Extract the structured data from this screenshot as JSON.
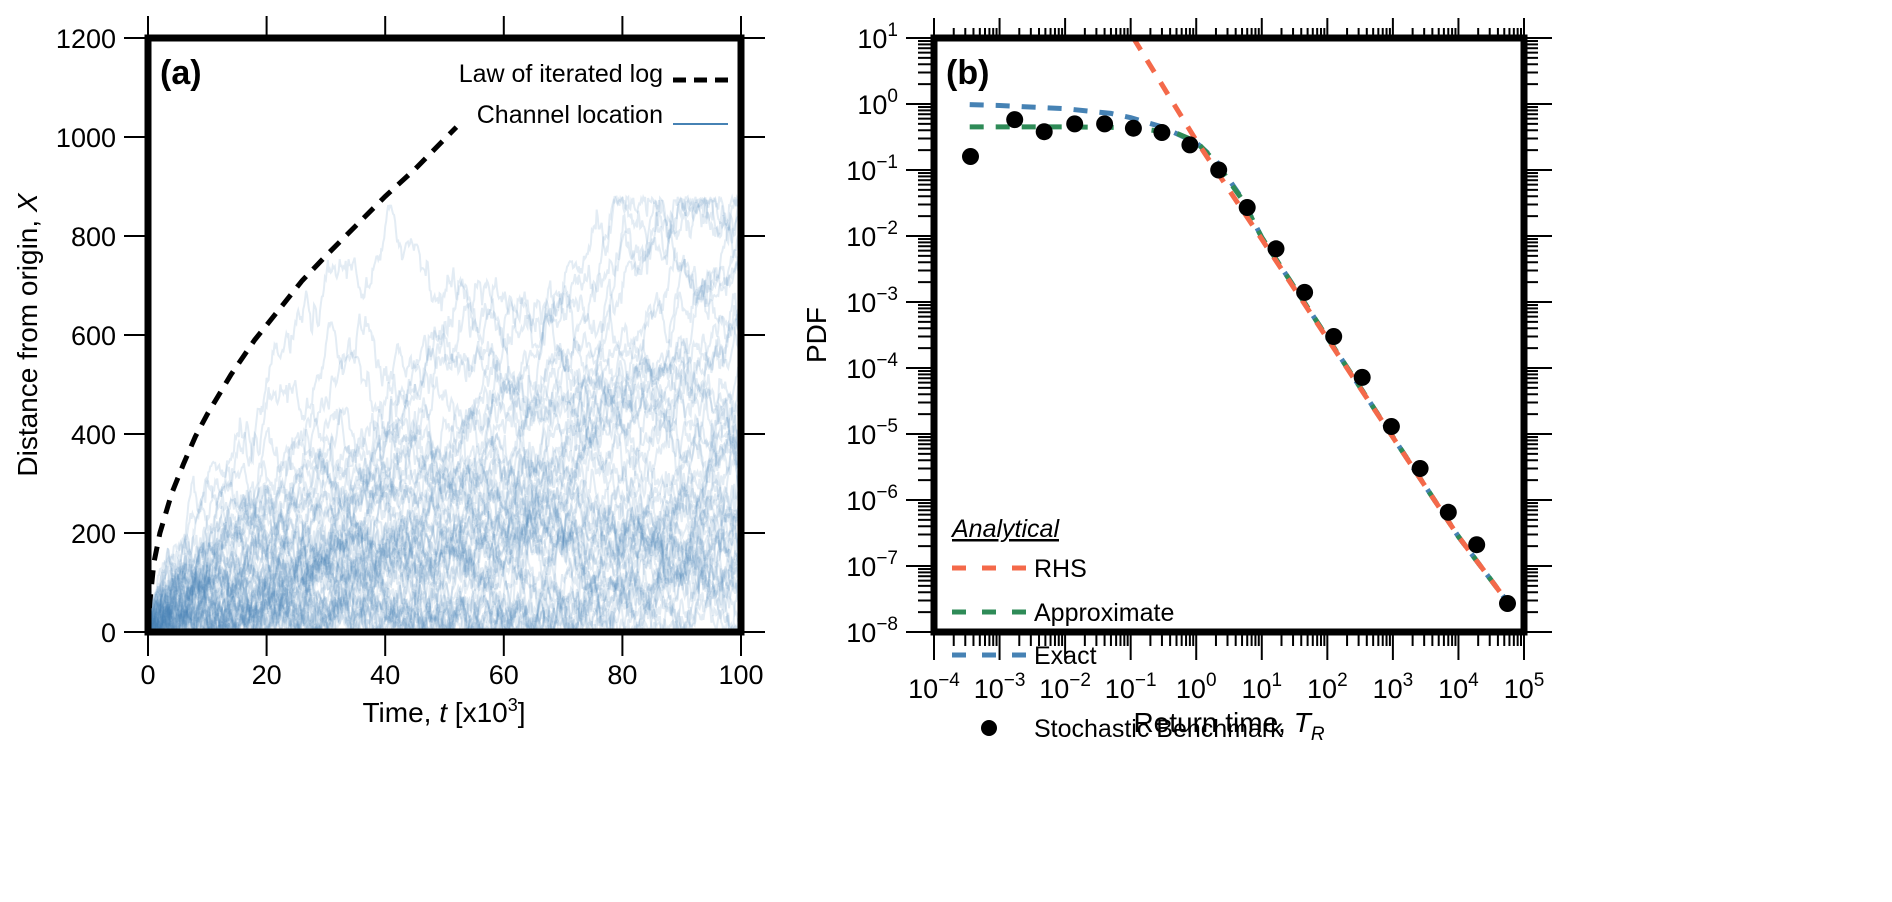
{
  "chart_data": [
    {
      "panel": "a",
      "type": "line",
      "panel_label": "(a)",
      "xlabel": "Time, t [x10^3]",
      "xlabel_parts": {
        "pre": "Time, ",
        "var": "t",
        "post": " [x10",
        "sup": "3",
        "close": "]"
      },
      "ylabel": "Distance from origin, X",
      "ylabel_parts": {
        "pre": "Distance from origin, ",
        "var": "X"
      },
      "xlim": [
        0,
        100
      ],
      "ylim": [
        0,
        1200
      ],
      "xticks": [
        0,
        20,
        40,
        60,
        80,
        100
      ],
      "xtick_labels": [
        "0",
        "20",
        "40",
        "60",
        "80",
        "100"
      ],
      "yticks": [
        0,
        200,
        400,
        600,
        800,
        1000,
        1200
      ],
      "ytick_labels": [
        "0",
        "200",
        "400",
        "600",
        "800",
        "1000",
        "1200"
      ],
      "grid": false,
      "legend_position": "top-right",
      "legend": [
        {
          "label": "Law of iterated log",
          "style": "dashed",
          "color": "#000000"
        },
        {
          "label": "Channel location",
          "style": "solid",
          "color": "#4682b4"
        }
      ],
      "series": [
        {
          "name": "Law of iterated log",
          "style": "dashed",
          "color": "#000000",
          "x": [
            0.3,
            1,
            2,
            4,
            6,
            8,
            10,
            14,
            18,
            22,
            26,
            30,
            35,
            40,
            45,
            52
          ],
          "y": [
            60,
            140,
            200,
            280,
            340,
            395,
            440,
            520,
            590,
            650,
            710,
            760,
            820,
            880,
            935,
            1020
          ]
        },
        {
          "name": "Channel location",
          "style": "solid",
          "color": "#4682b4",
          "opacity": 0.15,
          "n_realizations": 50,
          "envelope_description": "many stochastic realizations spreading from origin; upper envelope ~ 380 at t=10, ~600 at t=35, ~850 at t=85",
          "envelope_upper": {
            "x": [
              0,
              5,
              10,
              20,
              30,
              40,
              50,
              60,
              70,
              80,
              90,
              100
            ],
            "y": [
              0,
              300,
              380,
              430,
              600,
              580,
              600,
              650,
              720,
              880,
              870,
              860
            ]
          }
        }
      ]
    },
    {
      "panel": "b",
      "type": "line",
      "panel_label": "(b)",
      "xlabel": "Return time, T_R",
      "xlabel_parts": {
        "pre": "Return time, ",
        "var": "T",
        "sub": "R"
      },
      "ylabel": "PDF",
      "xscale": "log",
      "yscale": "log",
      "xlim": [
        0.0001,
        100000
      ],
      "ylim": [
        1e-08,
        10
      ],
      "xtick_exponents": [
        -4,
        -3,
        -2,
        -1,
        0,
        1,
        2,
        3,
        4,
        5
      ],
      "ytick_exponents": [
        1,
        0,
        -1,
        -2,
        -3,
        -4,
        -5,
        -6,
        -7,
        -8
      ],
      "grid": false,
      "legend_position": "bottom-left",
      "legend_title": "Analytical",
      "legend": [
        {
          "label": "RHS",
          "style": "dashed",
          "color": "#f4694a"
        },
        {
          "label": "Approximate",
          "style": "dashed",
          "color": "#2e8b57"
        },
        {
          "label": "Exact",
          "style": "dashed",
          "color": "#4682b4"
        },
        {
          "label": "Stochastic Benchmark",
          "style": "marker",
          "color": "#000000"
        }
      ],
      "series": [
        {
          "name": "RHS",
          "color": "#f4694a",
          "style": "dashed",
          "x": [
            0.11,
            1,
            10,
            100,
            1000,
            10000,
            60000
          ],
          "y": [
            10,
            0.28,
            0.0089,
            0.00028,
            8.9e-06,
            2.8e-07,
            2.6e-08
          ]
        },
        {
          "name": "Approximate",
          "color": "#2e8b57",
          "style": "dashed",
          "x": [
            0.00035,
            0.001,
            0.01,
            0.1,
            0.5,
            1,
            2,
            5,
            10,
            100,
            1000,
            10000,
            60000
          ],
          "y": [
            0.45,
            0.45,
            0.45,
            0.44,
            0.36,
            0.27,
            0.13,
            0.036,
            0.0095,
            0.00029,
            9e-06,
            2.8e-07,
            2.6e-08
          ]
        },
        {
          "name": "Exact",
          "color": "#4682b4",
          "style": "dashed",
          "x": [
            0.00035,
            0.001,
            0.01,
            0.05,
            0.1,
            0.3,
            1,
            2,
            5,
            10,
            100,
            1000,
            10000,
            60000
          ],
          "y": [
            0.98,
            0.95,
            0.85,
            0.72,
            0.62,
            0.45,
            0.26,
            0.14,
            0.037,
            0.0095,
            0.00029,
            9e-06,
            2.8e-07,
            2.6e-08
          ]
        },
        {
          "name": "Stochastic Benchmark",
          "color": "#000000",
          "style": "marker",
          "x": [
            0.00036,
            0.0017,
            0.0048,
            0.014,
            0.04,
            0.11,
            0.3,
            0.8,
            2.2,
            6.0,
            16.5,
            45,
            125,
            340,
            950,
            2600,
            7000,
            19000,
            56000
          ],
          "y": [
            0.16,
            0.58,
            0.38,
            0.5,
            0.5,
            0.43,
            0.37,
            0.24,
            0.1,
            0.027,
            0.0064,
            0.0014,
            0.0003,
            7.2e-05,
            1.3e-05,
            3e-06,
            6.5e-07,
            2.1e-07,
            2.7e-08
          ]
        }
      ]
    }
  ]
}
